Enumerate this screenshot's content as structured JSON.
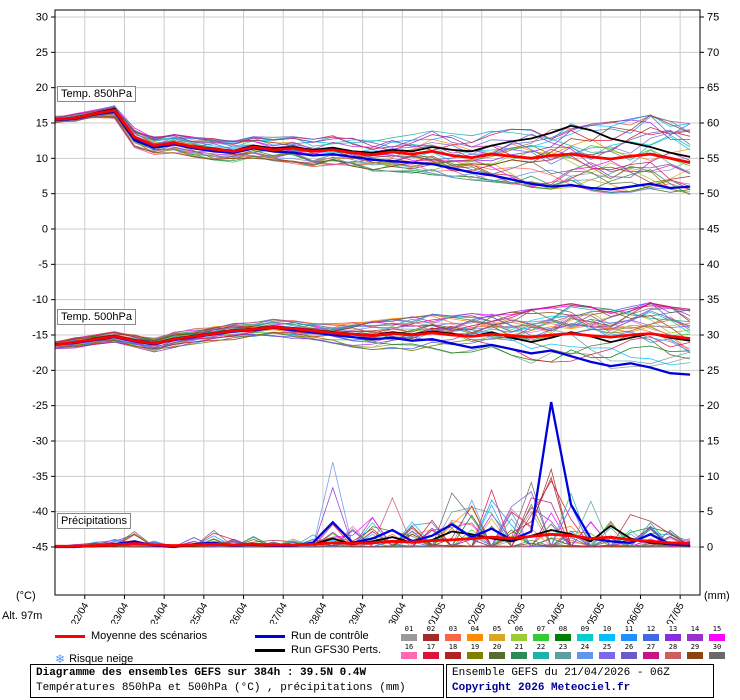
{
  "meta": {
    "altitude": "Alt. 97m"
  },
  "axes": {
    "left_unit": "(°C)",
    "right_unit": "(mm)"
  },
  "legend": {
    "mean": "Moyenne des scénarios",
    "control": "Run de contrôle",
    "gfs": "Run GFS",
    "perts": "30 Perts.",
    "snow": "Risque neige",
    "snow_icon": "❄",
    "pert_ids": [
      "01",
      "02",
      "03",
      "04",
      "05",
      "06",
      "07",
      "08",
      "09",
      "10",
      "11",
      "12",
      "13",
      "14",
      "15",
      "16",
      "17",
      "18",
      "19",
      "20",
      "21",
      "22",
      "23",
      "24",
      "25",
      "26",
      "27",
      "28",
      "29",
      "30"
    ]
  },
  "footer": {
    "title": "Diagramme des ensembles GEFS sur 384h : 39.5N 0.4W",
    "subtitle": "Températures 850hPa et 500hPa (°C) , précipitations (mm)",
    "run_info": "Ensemble GEFS du 21/04/2026 - 06Z",
    "copyright": "Copyright 2026 Meteociel.fr"
  },
  "chart_data": {
    "type": "line",
    "title": "Diagramme des ensembles GEFS sur 384h : 39.5N 0.4W",
    "run_start": "21/04/2026 06Z",
    "x_hours_step": 12,
    "x_total_hours": 384,
    "x_axis_hours_span": 390,
    "left_axis": {
      "label": "(°C)",
      "min": -45,
      "max": 30,
      "tick_step": 5,
      "ticks": [
        30,
        25,
        20,
        15,
        10,
        5,
        0,
        -5,
        -10,
        -15,
        -20,
        -25,
        -30,
        -35,
        -40,
        -45
      ]
    },
    "right_axis": {
      "label": "(mm)",
      "min": 0,
      "max": 75,
      "tick_step": 5,
      "temp_offset": -45,
      "ticks": [
        75,
        70,
        65,
        60,
        55,
        50,
        45,
        40,
        35,
        30,
        25,
        20,
        15,
        10,
        5,
        0
      ]
    },
    "x_ticks": [
      {
        "hour": 18,
        "label": "22/04"
      },
      {
        "hour": 42,
        "label": "23/04"
      },
      {
        "hour": 66,
        "label": "24/04"
      },
      {
        "hour": 90,
        "label": "25/04"
      },
      {
        "hour": 114,
        "label": "26/04"
      },
      {
        "hour": 138,
        "label": "27/04"
      },
      {
        "hour": 162,
        "label": "28/04"
      },
      {
        "hour": 186,
        "label": "29/04"
      },
      {
        "hour": 210,
        "label": "30/04"
      },
      {
        "hour": 234,
        "label": "01/05"
      },
      {
        "hour": 258,
        "label": "02/05"
      },
      {
        "hour": 282,
        "label": "03/05"
      },
      {
        "hour": 306,
        "label": "04/05"
      },
      {
        "hour": 330,
        "label": "05/05"
      },
      {
        "hour": 354,
        "label": "06/05"
      },
      {
        "hour": 378,
        "label": "07/05"
      }
    ],
    "series_styles": {
      "mean": {
        "label": "Moyenne des scénarios",
        "color": "#ff0000",
        "width": 2.8
      },
      "control": {
        "label": "Run de contrôle",
        "color": "#0000dd",
        "width": 2.3
      },
      "gfs": {
        "label": "Run GFS",
        "color": "#000000",
        "width": 1.8
      }
    },
    "member_colors": [
      "#999999",
      "#a52a2a",
      "#ff6347",
      "#ff8c00",
      "#daa520",
      "#9acd32",
      "#32cd32",
      "#008000",
      "#00ced1",
      "#00bfff",
      "#1e90ff",
      "#4169e1",
      "#8a2be2",
      "#9932cc",
      "#ff00ff",
      "#ff69b4",
      "#dc143c",
      "#b22222",
      "#808000",
      "#556b2f",
      "#2e8b57",
      "#20b2aa",
      "#5f9ea0",
      "#6495ed",
      "#7b68ee",
      "#6a5acd",
      "#c71585",
      "#cd5c5c",
      "#8b4513",
      "#696969"
    ],
    "panels": [
      {
        "name": "Temp. 850hPa",
        "kind": "temp",
        "unit": "°C",
        "value_offset": 0,
        "mean": [
          15.5,
          15.7,
          16.3,
          16.8,
          13.0,
          11.8,
          12.2,
          11.6,
          11.3,
          11.0,
          11.6,
          11.2,
          11.4,
          11.0,
          11.2,
          10.8,
          10.5,
          10.9,
          10.6,
          11.0,
          10.4,
          10.1,
          10.6,
          10.3,
          10.0,
          10.4,
          10.6,
          10.2,
          9.9,
          10.3,
          10.6,
          10.0,
          9.4
        ],
        "control": [
          15.4,
          15.6,
          16.2,
          16.6,
          12.6,
          11.5,
          12.0,
          11.4,
          11.0,
          10.8,
          11.4,
          11.0,
          10.8,
          10.4,
          10.6,
          10.2,
          9.8,
          9.6,
          9.4,
          9.2,
          8.6,
          8.0,
          7.6,
          7.0,
          6.4,
          6.0,
          6.2,
          5.8,
          5.6,
          6.0,
          6.4,
          5.8,
          6.0
        ],
        "gfs": [
          15.5,
          15.8,
          16.4,
          17.0,
          12.8,
          11.6,
          12.1,
          11.7,
          11.4,
          11.1,
          11.8,
          11.4,
          11.6,
          11.2,
          11.5,
          11.0,
          10.8,
          11.2,
          11.0,
          11.6,
          11.2,
          11.0,
          11.8,
          12.4,
          12.8,
          13.6,
          14.6,
          14.0,
          12.8,
          12.2,
          11.6,
          10.8,
          10.2
        ],
        "env_min": [
          15.1,
          15.2,
          15.8,
          15.6,
          11.5,
          10.4,
          10.8,
          10.2,
          9.8,
          9.4,
          9.8,
          9.4,
          9.2,
          8.8,
          9.0,
          8.6,
          8.2,
          8.0,
          7.8,
          7.6,
          7.2,
          6.8,
          6.6,
          6.2,
          5.8,
          5.4,
          5.6,
          5.2,
          4.8,
          5.0,
          5.4,
          4.8,
          4.4
        ],
        "env_max": [
          15.9,
          16.2,
          16.9,
          17.6,
          14.4,
          13.2,
          13.6,
          13.2,
          12.8,
          12.6,
          13.2,
          13.0,
          13.2,
          12.8,
          13.2,
          13.0,
          12.8,
          13.2,
          13.4,
          14.0,
          13.6,
          13.4,
          14.0,
          14.4,
          14.2,
          14.6,
          15.2,
          15.0,
          15.4,
          15.8,
          16.4,
          15.6,
          15.2
        ]
      },
      {
        "name": "Temp. 500hPa",
        "kind": "temp",
        "unit": "°C",
        "value_offset": 0,
        "mean": [
          -16.4,
          -16.0,
          -15.6,
          -15.2,
          -15.8,
          -16.2,
          -15.6,
          -15.2,
          -14.8,
          -14.4,
          -14.2,
          -13.9,
          -14.1,
          -14.4,
          -14.7,
          -14.9,
          -15.1,
          -14.8,
          -15.0,
          -14.7,
          -15.0,
          -15.2,
          -14.9,
          -15.1,
          -15.3,
          -15.0,
          -14.8,
          -15.1,
          -15.3,
          -15.0,
          -14.8,
          -15.2,
          -15.5
        ],
        "control": [
          -16.4,
          -16.1,
          -15.7,
          -15.3,
          -15.9,
          -16.3,
          -15.7,
          -15.3,
          -14.9,
          -14.5,
          -14.3,
          -14.0,
          -14.3,
          -14.6,
          -15.0,
          -15.3,
          -15.6,
          -15.4,
          -15.8,
          -15.6,
          -16.2,
          -16.8,
          -16.4,
          -17.0,
          -17.6,
          -17.2,
          -18.0,
          -18.8,
          -19.4,
          -19.0,
          -19.6,
          -20.4,
          -20.6
        ],
        "gfs": [
          -16.3,
          -16.0,
          -15.5,
          -15.1,
          -15.7,
          -16.1,
          -15.5,
          -15.1,
          -14.7,
          -14.3,
          -14.1,
          -13.8,
          -14.0,
          -14.3,
          -14.6,
          -14.8,
          -15.0,
          -14.6,
          -14.9,
          -14.5,
          -14.8,
          -15.2,
          -14.6,
          -15.4,
          -16.0,
          -15.4,
          -14.6,
          -15.2,
          -16.0,
          -15.4,
          -14.8,
          -15.4,
          -15.8
        ],
        "env_min": [
          -17.0,
          -16.8,
          -16.4,
          -16.2,
          -16.8,
          -17.4,
          -16.8,
          -16.4,
          -16.0,
          -15.6,
          -15.4,
          -15.2,
          -15.6,
          -16.0,
          -16.4,
          -16.8,
          -17.2,
          -17.0,
          -17.4,
          -17.2,
          -17.8,
          -18.4,
          -18.0,
          -18.6,
          -19.2,
          -19.0,
          -18.8,
          -19.4,
          -20.0,
          -19.6,
          -19.8,
          -20.4,
          -21.0
        ],
        "env_max": [
          -15.8,
          -15.4,
          -15.0,
          -14.6,
          -15.0,
          -15.4,
          -14.6,
          -14.2,
          -13.8,
          -13.4,
          -13.2,
          -12.8,
          -13.0,
          -13.2,
          -13.4,
          -13.2,
          -13.0,
          -12.6,
          -12.4,
          -12.0,
          -12.2,
          -11.8,
          -11.4,
          -11.6,
          -11.2,
          -10.8,
          -10.4,
          -10.8,
          -11.0,
          -10.6,
          -10.2,
          -10.8,
          -11.2
        ]
      },
      {
        "name": "Précipitations",
        "kind": "precip",
        "unit": "mm",
        "value_offset": -45,
        "mean": [
          0.1,
          0.1,
          0.2,
          0.3,
          0.5,
          0.3,
          0.2,
          0.3,
          0.4,
          0.3,
          0.4,
          0.3,
          0.3,
          0.4,
          0.6,
          0.5,
          0.6,
          0.8,
          0.7,
          0.9,
          1.0,
          1.2,
          1.4,
          1.2,
          1.5,
          1.8,
          1.6,
          1.2,
          1.4,
          1.0,
          0.8,
          0.6,
          0.5
        ],
        "control": [
          0,
          0,
          0.2,
          0.4,
          0.8,
          0.2,
          0,
          0.4,
          0.6,
          0.2,
          0.4,
          0.2,
          0.2,
          0.6,
          3.5,
          0.6,
          1.2,
          2.4,
          0.8,
          1.6,
          3.2,
          1.4,
          2.6,
          1.0,
          2.2,
          20.5,
          6.0,
          1.2,
          0.8,
          0.6,
          1.8,
          0.4,
          0.2
        ],
        "gfs": [
          0,
          0,
          0.1,
          0.2,
          0.6,
          0.2,
          0.1,
          0.2,
          0.5,
          0.2,
          0.3,
          0.2,
          0.2,
          0.4,
          1.2,
          0.4,
          0.8,
          1.4,
          0.6,
          1.0,
          2.2,
          1.8,
          1.2,
          0.8,
          1.6,
          2.4,
          1.8,
          0.8,
          3.0,
          1.2,
          0.6,
          0.4,
          0.3
        ],
        "env_min": [
          0,
          0,
          0,
          0,
          0,
          0,
          0,
          0,
          0,
          0,
          0,
          0,
          0,
          0,
          0,
          0,
          0,
          0,
          0,
          0,
          0,
          0,
          0,
          0,
          0,
          0,
          0,
          0,
          0,
          0,
          0,
          0,
          0
        ],
        "env_max": [
          0.3,
          0.4,
          0.8,
          1.2,
          2.2,
          1.0,
          0.6,
          1.5,
          2.5,
          1.2,
          1.5,
          1.0,
          1.2,
          2.0,
          12.0,
          3.0,
          4.5,
          7.5,
          4.0,
          6.5,
          9.0,
          7.0,
          8.5,
          6.0,
          9.5,
          12.0,
          8.0,
          6.5,
          9.0,
          5.0,
          4.0,
          2.5,
          1.5
        ]
      }
    ]
  }
}
